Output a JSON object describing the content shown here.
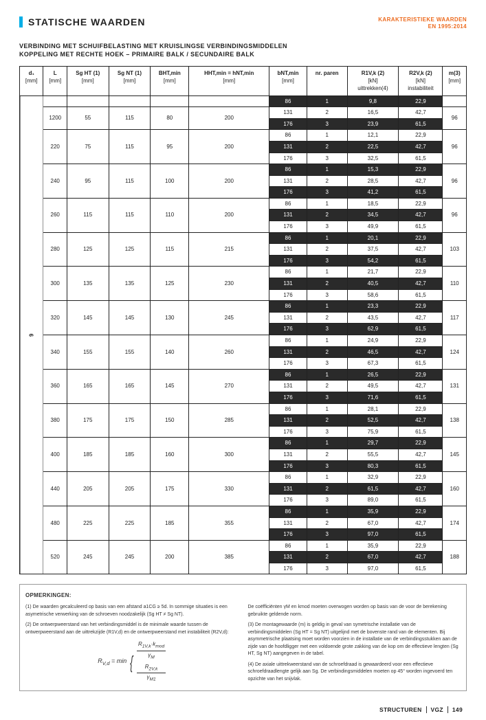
{
  "header": {
    "title": "STATISCHE WAARDEN",
    "sub1": "KARAKTERISTIEKE WAARDEN",
    "sub2": "EN 1995:2014"
  },
  "subtitle1": "VERBINDING MET SCHUIFBELASTING MET KRUISLINGSE VERBINDINGSMIDDELEN",
  "subtitle2": "KOPPELING MET RECHTE HOEK – PRIMAIRE BALK / SECUNDAIRE BALK",
  "cols": [
    {
      "h": "d₁",
      "u": "[mm]"
    },
    {
      "h": "L",
      "u": "[mm]"
    },
    {
      "h": "Sg HT (1)",
      "u": "[mm]"
    },
    {
      "h": "Sg NT (1)",
      "u": "[mm]"
    },
    {
      "h": "BHT,min",
      "u": "[mm]"
    },
    {
      "h": "HHT,min = hNT,min",
      "u": "[mm]"
    },
    {
      "h": "bNT,min",
      "u": "[mm]"
    },
    {
      "h": "nr. paren",
      "u": ""
    },
    {
      "h": "R1V,k (2)",
      "u": "[kN]",
      "n": "uittrekken(4)"
    },
    {
      "h": "R2V,k (2)",
      "u": "[kN]",
      "n": "instabiliteit"
    },
    {
      "h": "m(3)",
      "u": "[mm]"
    }
  ],
  "groups": [
    {
      "d": "",
      "sh": [
        {
          "L": "",
          "a": "",
          "b": "",
          "c": "",
          "d": "",
          "rows": [
            {
              "bn": "86",
              "p": "1",
              "r1": "9,8",
              "r2": "22,9",
              "dk": 1
            }
          ]
        },
        {
          "L": "1200",
          "a": "55",
          "b": "115",
          "c": "80",
          "d": "200",
          "rows": [
            {
              "bn": "131",
              "p": "2",
              "r1": "16,5",
              "r2": "42,7"
            },
            {
              "bn": "176",
              "p": "3",
              "r1": "23,9",
              "r2": "61,5",
              "dk": 1
            }
          ],
          "m": "96"
        },
        {
          "L": "220",
          "a": "75",
          "b": "115",
          "c": "95",
          "d": "200",
          "rows": [
            {
              "bn": "86",
              "p": "1",
              "r1": "12,1",
              "r2": "22,9"
            },
            {
              "bn": "131",
              "p": "2",
              "r1": "22,5",
              "r2": "42,7",
              "dk": 1
            },
            {
              "bn": "176",
              "p": "3",
              "r1": "32,5",
              "r2": "61,5"
            }
          ],
          "m": "96"
        },
        {
          "L": "240",
          "a": "95",
          "b": "115",
          "c": "100",
          "d": "200",
          "rows": [
            {
              "bn": "86",
              "p": "1",
              "r1": "15,3",
              "r2": "22,9",
              "dk": 1
            },
            {
              "bn": "131",
              "p": "2",
              "r1": "28,5",
              "r2": "42,7"
            },
            {
              "bn": "176",
              "p": "3",
              "r1": "41,2",
              "r2": "61,5",
              "dk": 1
            }
          ],
          "m": "96"
        },
        {
          "L": "260",
          "a": "115",
          "b": "115",
          "c": "110",
          "d": "200",
          "rows": [
            {
              "bn": "86",
              "p": "1",
              "r1": "18,5",
              "r2": "22,9"
            },
            {
              "bn": "131",
              "p": "2",
              "r1": "34,5",
              "r2": "42,7",
              "dk": 1
            },
            {
              "bn": "176",
              "p": "3",
              "r1": "49,9",
              "r2": "61,5"
            }
          ],
          "m": "96"
        },
        {
          "L": "280",
          "a": "125",
          "b": "125",
          "c": "115",
          "d": "215",
          "rows": [
            {
              "bn": "86",
              "p": "1",
              "r1": "20,1",
              "r2": "22,9",
              "dk": 1
            },
            {
              "bn": "131",
              "p": "2",
              "r1": "37,5",
              "r2": "42,7"
            },
            {
              "bn": "176",
              "p": "3",
              "r1": "54,2",
              "r2": "61,5",
              "dk": 1
            }
          ],
          "m": "103"
        },
        {
          "L": "300",
          "a": "135",
          "b": "135",
          "c": "125",
          "d": "230",
          "rows": [
            {
              "bn": "86",
              "p": "1",
              "r1": "21,7",
              "r2": "22,9"
            },
            {
              "bn": "131",
              "p": "2",
              "r1": "40,5",
              "r2": "42,7",
              "dk": 1
            },
            {
              "bn": "176",
              "p": "3",
              "r1": "58,6",
              "r2": "61,5"
            }
          ],
          "m": "110"
        },
        {
          "L": "320",
          "a": "145",
          "b": "145",
          "c": "130",
          "d": "245",
          "rows": [
            {
              "bn": "86",
              "p": "1",
              "r1": "23,3",
              "r2": "22,9",
              "dk": 1
            },
            {
              "bn": "131",
              "p": "2",
              "r1": "43,5",
              "r2": "42,7"
            },
            {
              "bn": "176",
              "p": "3",
              "r1": "62,9",
              "r2": "61,5",
              "dk": 1
            }
          ],
          "m": "117"
        },
        {
          "L": "340",
          "a": "155",
          "b": "155",
          "c": "140",
          "d": "260",
          "rows": [
            {
              "bn": "86",
              "p": "1",
              "r1": "24,9",
              "r2": "22,9"
            },
            {
              "bn": "131",
              "p": "2",
              "r1": "46,5",
              "r2": "42,7",
              "dk": 1
            },
            {
              "bn": "176",
              "p": "3",
              "r1": "67,3",
              "r2": "61,5"
            }
          ],
          "m": "124"
        },
        {
          "L": "360",
          "a": "165",
          "b": "165",
          "c": "145",
          "d": "270",
          "rows": [
            {
              "bn": "86",
              "p": "1",
              "r1": "26,5",
              "r2": "22,9",
              "dk": 1
            },
            {
              "bn": "131",
              "p": "2",
              "r1": "49,5",
              "r2": "42,7"
            },
            {
              "bn": "176",
              "p": "3",
              "r1": "71,6",
              "r2": "61,5",
              "dk": 1
            }
          ],
          "m": "131"
        },
        {
          "L": "380",
          "a": "175",
          "b": "175",
          "c": "150",
          "d": "285",
          "rows": [
            {
              "bn": "86",
              "p": "1",
              "r1": "28,1",
              "r2": "22,9"
            },
            {
              "bn": "131",
              "p": "2",
              "r1": "52,5",
              "r2": "42,7",
              "dk": 1
            },
            {
              "bn": "176",
              "p": "3",
              "r1": "75,9",
              "r2": "61,5"
            }
          ],
          "m": "138"
        },
        {
          "L": "400",
          "a": "185",
          "b": "185",
          "c": "160",
          "d": "300",
          "rows": [
            {
              "bn": "86",
              "p": "1",
              "r1": "29,7",
              "r2": "22,9",
              "dk": 1
            },
            {
              "bn": "131",
              "p": "2",
              "r1": "55,5",
              "r2": "42,7"
            },
            {
              "bn": "176",
              "p": "3",
              "r1": "80,3",
              "r2": "61,5",
              "dk": 1
            }
          ],
          "m": "145"
        },
        {
          "L": "440",
          "a": "205",
          "b": "205",
          "c": "175",
          "d": "330",
          "rows": [
            {
              "bn": "86",
              "p": "1",
              "r1": "32,9",
              "r2": "22,9"
            },
            {
              "bn": "131",
              "p": "2",
              "r1": "61,5",
              "r2": "42,7",
              "dk": 1
            },
            {
              "bn": "176",
              "p": "3",
              "r1": "89,0",
              "r2": "61,5"
            }
          ],
          "m": "160"
        },
        {
          "L": "480",
          "a": "225",
          "b": "225",
          "c": "185",
          "d": "355",
          "rows": [
            {
              "bn": "86",
              "p": "1",
              "r1": "35,9",
              "r2": "22,9",
              "dk": 1
            },
            {
              "bn": "131",
              "p": "2",
              "r1": "67,0",
              "r2": "42,7"
            },
            {
              "bn": "176",
              "p": "3",
              "r1": "97,0",
              "r2": "61,5",
              "dk": 1
            }
          ],
          "m": "174"
        },
        {
          "L": "520",
          "a": "245",
          "b": "245",
          "c": "200",
          "d": "385",
          "rows": [
            {
              "bn": "86",
              "p": "1",
              "r1": "35,9",
              "r2": "22,9"
            },
            {
              "bn": "131",
              "p": "2",
              "r1": "67,0",
              "r2": "42,7",
              "dk": 1
            },
            {
              "bn": "176",
              "p": "3",
              "r1": "97,0",
              "r2": "61,5"
            }
          ],
          "m": "188"
        }
      ]
    }
  ],
  "sidelabel": "9",
  "notes": {
    "h": "OPMERKINGEN:",
    "l1": "(1) De waarden gecalculeerd op basis van een afstand a1CG ≥ 5d. In sommige situaties is een asymetrische verwerking van de schroeven noodzakelijk (Sg HT ≠ Sg NT).",
    "l2": "(2) De ontwerpweerstand van het verbindingsmiddel is de minimale waarde tussen de ontwerpweerstand aan de uittrekzijde (R1V,d) en de ontwerpweerstand met instabiliteit (R2V,d):",
    "r1": "De coëfficiënten γM en kmod moeten overwogen worden op basis van de voor de berekening gebruikte geldende norm.",
    "r2": "(3) De montagewaarde (m) is geldig in geval van symetrische installatie van de verbindingsmiddelen (Sg HT = Sg NT) uitgelijnd met de bovenste rand van de elementen. Bij asymmetrische plaatsing moet worden voorzien in de installatie van de verbindingsstukken aan de zijde van de hoofdligger met een voldoende grote zakking van de kop om de effectieve lengten (Sg HT, Sg NT) aangegeven in de tabel.",
    "r3": "(4) De axiale uittrekweerstand van de schroefdraad is gewaardeerd voor een effectieve schroefdraadlengte gelijk aan Sg. De verbindingsmiddelen moeten op 45° worden ingevoerd ten opzichte van het snijvlak."
  },
  "footer": {
    "a": "STRUCTUREN",
    "b": "VGZ",
    "c": "149"
  }
}
